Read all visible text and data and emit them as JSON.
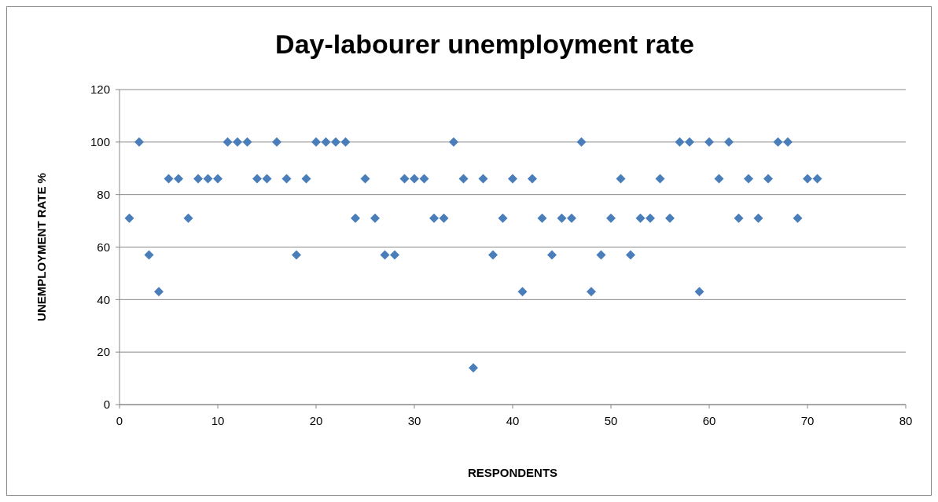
{
  "chart_data": {
    "type": "scatter",
    "title": "Day-labourer unemployment rate",
    "xlabel": "RESPONDENTS",
    "ylabel": "UNEMPLOYMENT RATE %",
    "x": [
      1,
      2,
      3,
      4,
      5,
      6,
      7,
      8,
      9,
      10,
      11,
      12,
      13,
      14,
      15,
      16,
      17,
      18,
      19,
      20,
      21,
      22,
      23,
      24,
      25,
      26,
      27,
      28,
      29,
      30,
      31,
      32,
      33,
      34,
      35,
      36,
      37,
      38,
      39,
      40,
      41,
      42,
      43,
      44,
      45,
      46,
      47,
      48,
      49,
      50,
      51,
      52,
      53,
      54,
      55,
      56,
      57,
      58,
      59,
      60,
      61,
      62,
      63,
      64,
      65,
      66,
      67,
      68,
      69,
      70,
      71
    ],
    "series": [
      {
        "color": "#4a7ebb",
        "values": [
          71,
          100,
          57,
          43,
          86,
          86,
          71,
          86,
          86,
          86,
          100,
          100,
          100,
          86,
          86,
          100,
          86,
          57,
          86,
          100,
          100,
          100,
          100,
          71,
          86,
          71,
          57,
          57,
          86,
          86,
          86,
          71,
          71,
          100,
          86,
          14,
          86,
          57,
          71,
          86,
          43,
          86,
          71,
          57,
          71,
          71,
          100,
          43,
          57,
          71,
          86,
          57,
          71,
          71,
          86,
          71,
          100,
          100,
          43,
          100,
          86,
          100,
          71,
          86,
          71,
          86,
          100,
          100,
          71,
          86,
          86
        ]
      }
    ],
    "xlim": [
      0,
      80
    ],
    "xticks": [
      0,
      10,
      20,
      30,
      40,
      50,
      60,
      70,
      80
    ],
    "ylim": [
      0,
      120
    ],
    "yticks": [
      0,
      20,
      40,
      60,
      80,
      100,
      120
    ],
    "grid": "y",
    "marker": "diamond"
  }
}
